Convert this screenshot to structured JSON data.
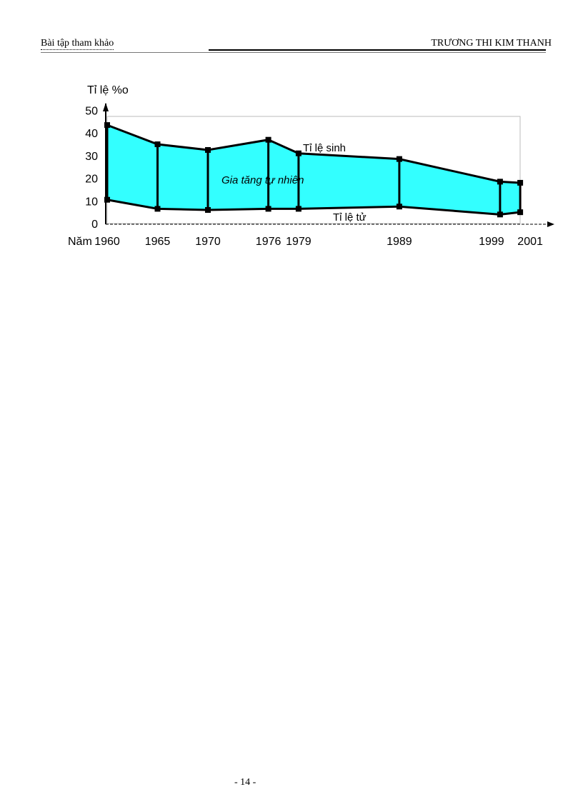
{
  "header": {
    "left": "Bài tập tham khảo",
    "right": "TRƯƠNG THI KIM THANH"
  },
  "footer": {
    "page": "- 14 -"
  },
  "chart_data": {
    "type": "area",
    "ylabel": "Tỉ lệ %o",
    "xlabel": "Năm",
    "ylim": [
      0,
      50
    ],
    "yticks": [
      0,
      10,
      20,
      30,
      40,
      50
    ],
    "x": [
      1960,
      1965,
      1970,
      1976,
      1979,
      1989,
      1999,
      2001
    ],
    "x_labels": [
      "1960",
      "1965",
      "1970",
      "1976",
      "1979",
      "1989",
      "1999",
      "2001"
    ],
    "series": [
      {
        "name": "Tỉ lệ sinh",
        "values": [
          43.5,
          35,
          32.5,
          37,
          31,
          28.5,
          18.5,
          18
        ]
      },
      {
        "name": "Tỉ lệ tử",
        "values": [
          10.5,
          6.5,
          6,
          6.5,
          6.5,
          7.5,
          4,
          5
        ]
      }
    ],
    "fill_label": "Gia tăng tự nhiên",
    "fill_color": "#33ffff"
  }
}
